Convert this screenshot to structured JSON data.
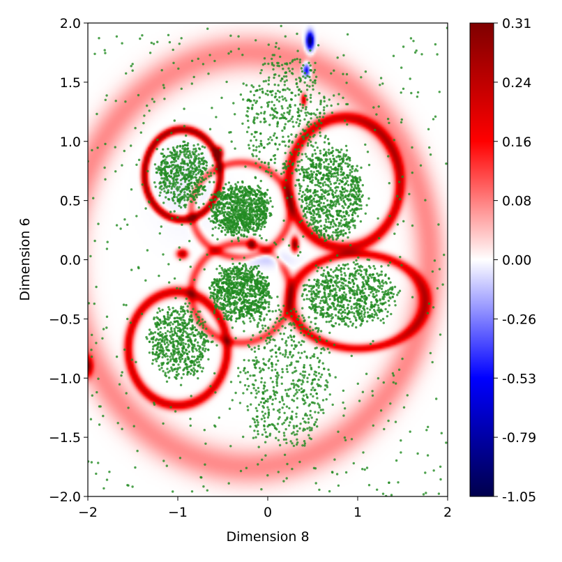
{
  "chart_data": {
    "type": "heatmap",
    "title": "",
    "xlabel": "Dimension 8",
    "ylabel": "Dimension 6",
    "xlim": [
      -2.0,
      2.0
    ],
    "ylim": [
      -2.0,
      2.0
    ],
    "x_ticks": [
      -2,
      -1,
      0,
      1,
      2
    ],
    "x_tick_labels": [
      "−2",
      "−1",
      "0",
      "1",
      "2"
    ],
    "y_ticks": [
      -2.0,
      -1.5,
      -1.0,
      -0.5,
      0.0,
      0.5,
      1.0,
      1.5,
      2.0
    ],
    "y_tick_labels": [
      "−2.0",
      "−1.5",
      "−1.0",
      "−0.5",
      "0.0",
      "0.5",
      "1.0",
      "1.5",
      "2.0"
    ],
    "grid": false,
    "colormap": "seismic",
    "colorbar": {
      "range": [
        -1.05,
        0.31
      ],
      "center": 0.0,
      "tick_labels": [
        "0.31",
        "0.24",
        "0.16",
        "0.08",
        "0.00",
        "-0.26",
        "-0.53",
        "-0.79",
        "-1.05"
      ]
    },
    "scatter": {
      "color": "#228b22",
      "regions": [
        {
          "center": [
            -0.3,
            0.42
          ],
          "radius": [
            0.32,
            0.2
          ],
          "weight": 900
        },
        {
          "center": [
            -0.3,
            -0.28
          ],
          "radius": [
            0.32,
            0.22
          ],
          "weight": 850
        },
        {
          "center": [
            -0.95,
            0.72
          ],
          "radius": [
            0.28,
            0.25
          ],
          "weight": 520
        },
        {
          "center": [
            -0.98,
            -0.7
          ],
          "radius": [
            0.32,
            0.3
          ],
          "weight": 560
        },
        {
          "center": [
            0.7,
            0.55
          ],
          "radius": [
            0.35,
            0.38
          ],
          "weight": 780
        },
        {
          "center": [
            0.9,
            -0.3
          ],
          "radius": [
            0.5,
            0.25
          ],
          "weight": 700
        },
        {
          "center": [
            0.2,
            -1.0
          ],
          "radius": [
            0.5,
            0.6
          ],
          "weight": 500
        },
        {
          "center": [
            0.2,
            1.2
          ],
          "radius": [
            0.45,
            0.55
          ],
          "weight": 420
        },
        {
          "center": [
            0.0,
            0.0
          ],
          "radius": [
            2.0,
            2.0
          ],
          "weight": 650
        }
      ]
    },
    "heat_features": [
      {
        "kind": "ring",
        "center": [
          -0.95,
          0.72
        ],
        "radius": [
          0.42,
          0.38
        ],
        "value": 0.27
      },
      {
        "kind": "ring",
        "center": [
          -1.0,
          -0.75
        ],
        "radius": [
          0.55,
          0.48
        ],
        "value": 0.2
      },
      {
        "kind": "ring",
        "center": [
          0.85,
          0.65
        ],
        "radius": [
          0.62,
          0.55
        ],
        "value": 0.2
      },
      {
        "kind": "ring",
        "center": [
          1.0,
          -0.35
        ],
        "radius": [
          0.75,
          0.4
        ],
        "value": 0.18
      },
      {
        "kind": "ring",
        "center": [
          -0.3,
          0.42
        ],
        "radius": [
          0.55,
          0.4
        ],
        "value": 0.12
      },
      {
        "kind": "ring",
        "center": [
          -0.3,
          -0.28
        ],
        "radius": [
          0.55,
          0.42
        ],
        "value": 0.12
      },
      {
        "kind": "ring",
        "center": [
          -0.2,
          0.0
        ],
        "radius": [
          2.0,
          1.75
        ],
        "value": 0.07
      },
      {
        "kind": "blob",
        "center": [
          0.47,
          1.85
        ],
        "radius": [
          0.04,
          0.07
        ],
        "value": -1.05
      },
      {
        "kind": "blob",
        "center": [
          0.43,
          1.6
        ],
        "radius": [
          0.035,
          0.05
        ],
        "value": -0.6
      },
      {
        "kind": "blob",
        "center": [
          0.4,
          1.35
        ],
        "radius": [
          0.03,
          0.05
        ],
        "value": 0.22
      },
      {
        "kind": "blob",
        "center": [
          0.3,
          0.13
        ],
        "radius": [
          0.04,
          0.06
        ],
        "value": 0.3
      },
      {
        "kind": "blob",
        "center": [
          -0.18,
          0.13
        ],
        "radius": [
          0.04,
          0.04
        ],
        "value": 0.28
      },
      {
        "kind": "blob",
        "center": [
          -0.55,
          0.9
        ],
        "radius": [
          0.05,
          0.05
        ],
        "value": 0.3
      },
      {
        "kind": "blob",
        "center": [
          -0.95,
          0.05
        ],
        "radius": [
          0.06,
          0.04
        ],
        "value": 0.25
      },
      {
        "kind": "blob",
        "center": [
          -2.0,
          -0.9
        ],
        "radius": [
          0.05,
          0.08
        ],
        "value": 0.25
      },
      {
        "kind": "blob",
        "center": [
          0.0,
          0.0
        ],
        "radius": [
          0.25,
          0.06
        ],
        "value": -0.1
      }
    ]
  }
}
